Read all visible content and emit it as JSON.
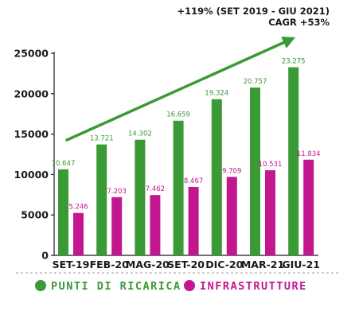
{
  "annotation": {
    "line1": "+119%  (SET 2019 - GIU 2021)",
    "line2": "CAGR +53%"
  },
  "chart_data": {
    "type": "bar",
    "categories": [
      "SET-19",
      "FEB-20",
      "MAG-20",
      "SET-20",
      "DIC-20",
      "MAR-21",
      "GIU-21"
    ],
    "series": [
      {
        "name": "PUNTI DI RICARICA",
        "color": "#3a9a35",
        "values": [
          10647,
          13721,
          14302,
          16659,
          19324,
          20757,
          23275
        ],
        "labels": [
          "10.647",
          "13.721",
          "14.302",
          "16.659",
          "19.324",
          "20.757",
          "23.275"
        ]
      },
      {
        "name": "INFRASTRUTTURE",
        "color": "#c2178f",
        "values": [
          5246,
          7203,
          7462,
          8467,
          9709,
          10531,
          11834
        ],
        "labels": [
          "5.246",
          "7.203",
          "7.462",
          "8.467",
          "9.709",
          "10.531",
          "11.834"
        ]
      }
    ],
    "ylim": [
      0,
      25000
    ],
    "yticks": [
      0,
      5000,
      10000,
      15000,
      20000,
      25000
    ],
    "ytick_labels": [
      "0",
      "5000",
      "10000",
      "15000",
      "20000",
      "25000"
    ],
    "grid": false,
    "legend_position": "bottom",
    "trend_arrow": true,
    "trend_arrow_color": "#3a9a35",
    "axis_color": "#1a1a1a"
  }
}
